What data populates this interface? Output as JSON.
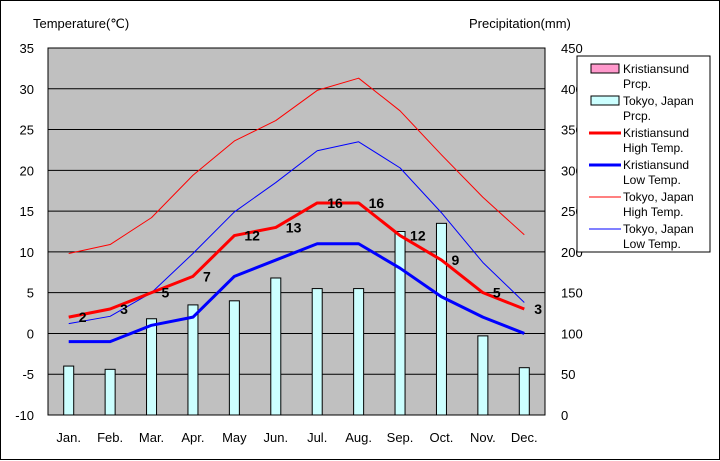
{
  "chart_data": {
    "type": "bar",
    "title": "",
    "y_left_label": "Temperature(℃)",
    "y_right_label": "Precipitation(mm)",
    "categories": [
      "Jan.",
      "Feb.",
      "Mar.",
      "Apr.",
      "May",
      "Jun.",
      "Jul.",
      "Aug.",
      "Sep.",
      "Oct.",
      "Nov.",
      "Dec."
    ],
    "ylim_left": [
      -10,
      35
    ],
    "ylim_right": [
      0,
      450
    ],
    "yticks_left": [
      35,
      30,
      25,
      20,
      15,
      10,
      5,
      0,
      -5,
      -10
    ],
    "yticks_right": [
      450,
      400,
      350,
      300,
      250,
      200,
      150,
      100,
      50,
      0
    ],
    "grid": true,
    "legend_position": "right",
    "series": [
      {
        "name": "Kristiansund Prcp.",
        "kind": "bar",
        "axis": "right",
        "color": "#FF99CC",
        "values": [
          null,
          null,
          null,
          null,
          null,
          null,
          null,
          null,
          null,
          null,
          null,
          null
        ]
      },
      {
        "name": "Tokyo, Japan Prcp.",
        "kind": "bar",
        "axis": "right",
        "color": "#CCFFFF",
        "values": [
          60,
          56,
          118,
          135,
          140,
          168,
          155,
          155,
          225,
          235,
          97,
          58
        ]
      },
      {
        "name": "Kristiansund High Temp.",
        "kind": "line",
        "axis": "left",
        "color": "#FF0000",
        "width": 3,
        "values": [
          2,
          3,
          5,
          7,
          12,
          13,
          16,
          16,
          12,
          9,
          5,
          3
        ]
      },
      {
        "name": "Kristiansund Low Temp.",
        "kind": "line",
        "axis": "left",
        "color": "#0000FF",
        "width": 3,
        "values": [
          -1,
          -1,
          1,
          2,
          7,
          9,
          11,
          11,
          8,
          4.5,
          2,
          0
        ]
      },
      {
        "name": "Tokyo, Japan High Temp.",
        "kind": "line",
        "axis": "left",
        "color": "#FF0000",
        "width": 1,
        "values": [
          9.8,
          10.9,
          14.2,
          19.4,
          23.6,
          26.1,
          29.8,
          31.3,
          27.3,
          21.9,
          16.7,
          12.1
        ]
      },
      {
        "name": "Tokyo, Japan Low Temp.",
        "kind": "line",
        "axis": "left",
        "color": "#0000FF",
        "width": 1,
        "values": [
          1.2,
          2.1,
          5.0,
          9.8,
          14.9,
          18.5,
          22.4,
          23.5,
          20.3,
          14.8,
          8.7,
          3.8
        ]
      }
    ],
    "data_labels": {
      "series": "Kristiansund High Temp.",
      "values": [
        "2",
        "3",
        "5",
        "7",
        "12",
        "13",
        "16",
        "16",
        "12",
        "9",
        "5",
        "3"
      ]
    },
    "legend": [
      {
        "line1": "Kristiansund",
        "line2": "Prcp.",
        "type": "bar",
        "color": "#FF99CC",
        "width": 1
      },
      {
        "line1": "Tokyo, Japan",
        "line2": "Prcp.",
        "type": "bar",
        "color": "#CCFFFF",
        "width": 1
      },
      {
        "line1": "Kristiansund",
        "line2": "High Temp.",
        "type": "line",
        "color": "#FF0000",
        "width": 3
      },
      {
        "line1": "Kristiansund",
        "line2": "Low Temp.",
        "type": "line",
        "color": "#0000FF",
        "width": 3
      },
      {
        "line1": "Tokyo, Japan",
        "line2": "High Temp.",
        "type": "line",
        "color": "#FF0000",
        "width": 1
      },
      {
        "line1": "Tokyo, Japan",
        "line2": "Low Temp.",
        "type": "line",
        "color": "#0000FF",
        "width": 1
      }
    ],
    "colors": {
      "plot_background": "#C0C0C0",
      "gridline": "#000000"
    }
  }
}
